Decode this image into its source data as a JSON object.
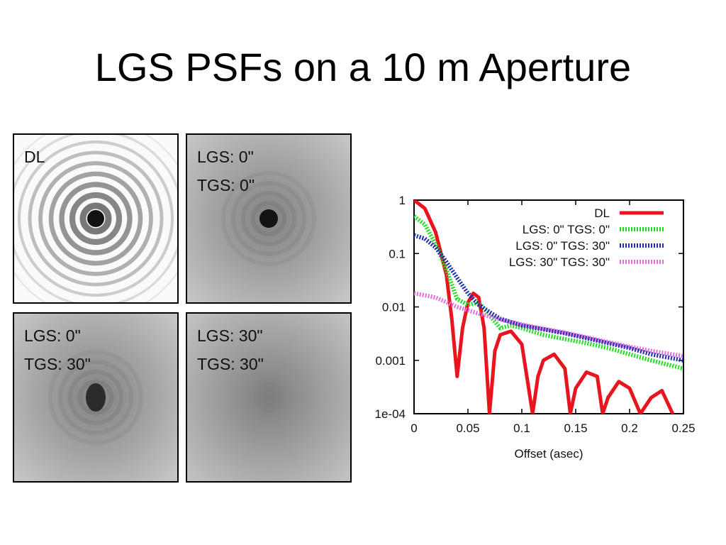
{
  "slide": {
    "title": "LGS PSFs on a 10 m Aperture"
  },
  "panels": [
    {
      "id": "dl",
      "lines": [
        "DL"
      ],
      "rings": "sharp",
      "core_darkness": 0.95,
      "halo_level": 0.05
    },
    {
      "id": "lgs0-tgs0",
      "lines": [
        "LGS: 0\"",
        "TGS: 0\""
      ],
      "rings": "faint",
      "core_darkness": 0.95,
      "halo_level": 0.45
    },
    {
      "id": "lgs0-tgs30",
      "lines": [
        "LGS: 0\"",
        "TGS: 30\""
      ],
      "rings": "faint",
      "core_darkness": 0.85,
      "halo_level": 0.45
    },
    {
      "id": "lgs30-tgs30",
      "lines": [
        "LGS: 30\"",
        "TGS: 30\""
      ],
      "rings": "none",
      "core_darkness": 0.5,
      "halo_level": 0.5
    }
  ],
  "chart_data": {
    "type": "line",
    "xlabel": "Offset (asec)",
    "ylabel": "",
    "xlim": [
      0,
      0.25
    ],
    "ylim": [
      0.0001,
      1
    ],
    "yscale": "log",
    "x_ticks": [
      {
        "value": 0,
        "label": "0"
      },
      {
        "value": 0.05,
        "label": "0.05"
      },
      {
        "value": 0.1,
        "label": "0.1"
      },
      {
        "value": 0.15,
        "label": "0.15"
      },
      {
        "value": 0.2,
        "label": "0.2"
      },
      {
        "value": 0.25,
        "label": "0.25"
      }
    ],
    "y_ticks": [
      {
        "value": 1,
        "label": "1"
      },
      {
        "value": 0.1,
        "label": "0.1"
      },
      {
        "value": 0.01,
        "label": "0.01"
      },
      {
        "value": 0.001,
        "label": "0.001"
      },
      {
        "value": 0.0001,
        "label": "1e-04"
      }
    ],
    "legend_position": "top-right",
    "series": [
      {
        "name": "DL",
        "color": "#e8141e",
        "style": "solid",
        "x": [
          0,
          0.01,
          0.02,
          0.03,
          0.035,
          0.04,
          0.045,
          0.05,
          0.055,
          0.06,
          0.065,
          0.07,
          0.075,
          0.08,
          0.09,
          0.1,
          0.11,
          0.115,
          0.12,
          0.13,
          0.14,
          0.145,
          0.15,
          0.16,
          0.17,
          0.175,
          0.18,
          0.19,
          0.2,
          0.21,
          0.22,
          0.23,
          0.24
        ],
        "y": [
          1,
          0.7,
          0.25,
          0.04,
          0.006,
          0.0005,
          0.004,
          0.012,
          0.018,
          0.015,
          0.004,
          0.0001,
          0.0015,
          0.003,
          0.0035,
          0.002,
          0.0001,
          0.0005,
          0.001,
          0.0013,
          0.0007,
          0.0001,
          0.0003,
          0.0006,
          0.0005,
          0.0001,
          0.0002,
          0.0004,
          0.0003,
          0.0001,
          0.0002,
          0.00027,
          0.0001
        ]
      },
      {
        "name": "LGS: 0\" TGS: 0\"",
        "color": "#22dd22",
        "style": "dotted",
        "x": [
          0,
          0.01,
          0.02,
          0.03,
          0.04,
          0.05,
          0.06,
          0.07,
          0.08,
          0.09,
          0.1,
          0.12,
          0.14,
          0.16,
          0.18,
          0.2,
          0.22,
          0.25
        ],
        "y": [
          0.5,
          0.35,
          0.15,
          0.05,
          0.014,
          0.011,
          0.012,
          0.007,
          0.004,
          0.0045,
          0.004,
          0.003,
          0.0025,
          0.0021,
          0.0017,
          0.0013,
          0.001,
          0.0007
        ]
      },
      {
        "name": "LGS: 0\" TGS: 30\"",
        "color": "#1c2fa8",
        "style": "dotted",
        "x": [
          0,
          0.01,
          0.02,
          0.03,
          0.04,
          0.05,
          0.06,
          0.07,
          0.08,
          0.1,
          0.12,
          0.14,
          0.16,
          0.18,
          0.2,
          0.22,
          0.25
        ],
        "y": [
          0.22,
          0.19,
          0.13,
          0.07,
          0.035,
          0.018,
          0.011,
          0.008,
          0.006,
          0.0045,
          0.0038,
          0.0032,
          0.0026,
          0.0021,
          0.0017,
          0.0013,
          0.001
        ]
      },
      {
        "name": "LGS: 30\" TGS: 30\"",
        "color": "#e070e0",
        "style": "dotted",
        "x": [
          0,
          0.02,
          0.04,
          0.06,
          0.08,
          0.1,
          0.12,
          0.14,
          0.16,
          0.18,
          0.2,
          0.22,
          0.25
        ],
        "y": [
          0.018,
          0.015,
          0.01,
          0.0075,
          0.0058,
          0.0047,
          0.0039,
          0.0033,
          0.0027,
          0.0022,
          0.0018,
          0.0015,
          0.0012
        ]
      }
    ]
  }
}
